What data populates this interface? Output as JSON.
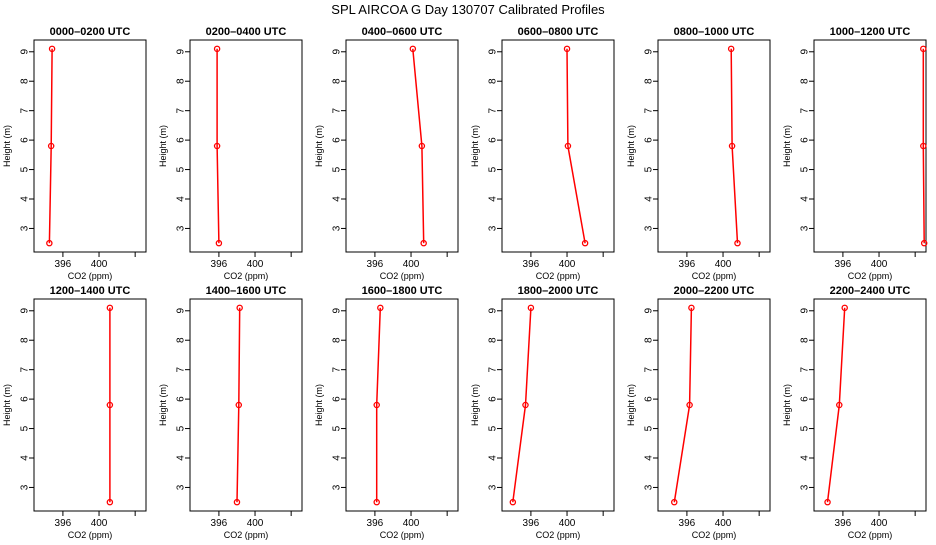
{
  "title": "SPL AIRCOA G  Day 130707  Calibrated Profiles",
  "colors": {
    "series": "#ff0000",
    "axis": "#000000",
    "background": "#ffffff"
  },
  "chart_data": [
    {
      "type": "line",
      "title": "0000–0200 UTC",
      "xlabel": "CO2 (ppm)",
      "ylabel": "Height (m)",
      "xlim": [
        392.8,
        405.2
      ],
      "ylim": [
        2.2,
        9.4
      ],
      "xticks": [
        "396",
        "400"
      ],
      "yticks": [
        "3",
        "4",
        "5",
        "6",
        "7",
        "8",
        "9"
      ],
      "x": [
        394.5,
        394.7,
        394.8
      ],
      "y": [
        2.5,
        5.8,
        9.1
      ],
      "grid": false,
      "legend": "none"
    },
    {
      "type": "line",
      "title": "0200–0400 UTC",
      "xlabel": "CO2 (ppm)",
      "ylabel": "Height (m)",
      "xlim": [
        392.8,
        405.2
      ],
      "ylim": [
        2.2,
        9.4
      ],
      "xticks": [
        "396",
        "400"
      ],
      "yticks": [
        "3",
        "4",
        "5",
        "6",
        "7",
        "8",
        "9"
      ],
      "x": [
        396.0,
        395.8,
        395.8
      ],
      "y": [
        2.5,
        5.8,
        9.1
      ],
      "grid": false,
      "legend": "none"
    },
    {
      "type": "line",
      "title": "0400–0600 UTC",
      "xlabel": "CO2 (ppm)",
      "ylabel": "Height (m)",
      "xlim": [
        392.8,
        405.2
      ],
      "ylim": [
        2.2,
        9.4
      ],
      "xticks": [
        "396",
        "400"
      ],
      "yticks": [
        "3",
        "4",
        "5",
        "6",
        "7",
        "8",
        "9"
      ],
      "x": [
        401.4,
        401.2,
        400.2
      ],
      "y": [
        2.5,
        5.8,
        9.1
      ],
      "grid": false,
      "legend": "none"
    },
    {
      "type": "line",
      "title": "0600–0800 UTC",
      "xlabel": "CO2 (ppm)",
      "ylabel": "Height (m)",
      "xlim": [
        392.8,
        405.2
      ],
      "ylim": [
        2.2,
        9.4
      ],
      "xticks": [
        "396",
        "400"
      ],
      "yticks": [
        "3",
        "4",
        "5",
        "6",
        "7",
        "8",
        "9"
      ],
      "x": [
        402.0,
        400.1,
        400.0
      ],
      "y": [
        2.5,
        5.8,
        9.1
      ],
      "grid": false,
      "legend": "none"
    },
    {
      "type": "line",
      "title": "0800–1000 UTC",
      "xlabel": "CO2 (ppm)",
      "ylabel": "Height (m)",
      "xlim": [
        392.8,
        405.2
      ],
      "ylim": [
        2.2,
        9.4
      ],
      "xticks": [
        "396",
        "400"
      ],
      "yticks": [
        "3",
        "4",
        "5",
        "6",
        "7",
        "8",
        "9"
      ],
      "x": [
        401.6,
        401.0,
        400.9
      ],
      "y": [
        2.5,
        5.8,
        9.1
      ],
      "grid": false,
      "legend": "none"
    },
    {
      "type": "line",
      "title": "1000–1200 UTC",
      "xlabel": "CO2 (ppm)",
      "ylabel": "Height (m)",
      "xlim": [
        392.8,
        405.2
      ],
      "ylim": [
        2.2,
        9.4
      ],
      "xticks": [
        "396",
        "400"
      ],
      "yticks": [
        "3",
        "4",
        "5",
        "6",
        "7",
        "8",
        "9"
      ],
      "x": [
        405.0,
        404.9,
        404.9
      ],
      "y": [
        2.5,
        5.8,
        9.1
      ],
      "grid": false,
      "legend": "none"
    },
    {
      "type": "line",
      "title": "1200–1400 UTC",
      "xlabel": "CO2 (ppm)",
      "ylabel": "Height (m)",
      "xlim": [
        392.8,
        405.2
      ],
      "ylim": [
        2.2,
        9.4
      ],
      "xticks": [
        "396",
        "400"
      ],
      "yticks": [
        "3",
        "4",
        "5",
        "6",
        "7",
        "8",
        "9"
      ],
      "x": [
        401.2,
        401.2,
        401.2
      ],
      "y": [
        2.5,
        5.8,
        9.1
      ],
      "grid": false,
      "legend": "none"
    },
    {
      "type": "line",
      "title": "1400–1600 UTC",
      "xlabel": "CO2 (ppm)",
      "ylabel": "Height (m)",
      "xlim": [
        392.8,
        405.2
      ],
      "ylim": [
        2.2,
        9.4
      ],
      "xticks": [
        "396",
        "400"
      ],
      "yticks": [
        "3",
        "4",
        "5",
        "6",
        "7",
        "8",
        "9"
      ],
      "x": [
        398.0,
        398.2,
        398.3
      ],
      "y": [
        2.5,
        5.8,
        9.1
      ],
      "grid": false,
      "legend": "none"
    },
    {
      "type": "line",
      "title": "1600–1800 UTC",
      "xlabel": "CO2 (ppm)",
      "ylabel": "Height (m)",
      "xlim": [
        392.8,
        405.2
      ],
      "ylim": [
        2.2,
        9.4
      ],
      "xticks": [
        "396",
        "400"
      ],
      "yticks": [
        "3",
        "4",
        "5",
        "6",
        "7",
        "8",
        "9"
      ],
      "x": [
        396.2,
        396.2,
        396.6
      ],
      "y": [
        2.5,
        5.8,
        9.1
      ],
      "grid": false,
      "legend": "none"
    },
    {
      "type": "line",
      "title": "1800–2000 UTC",
      "xlabel": "CO2 (ppm)",
      "ylabel": "Height (m)",
      "xlim": [
        392.8,
        405.2
      ],
      "ylim": [
        2.2,
        9.4
      ],
      "xticks": [
        "396",
        "400"
      ],
      "yticks": [
        "3",
        "4",
        "5",
        "6",
        "7",
        "8",
        "9"
      ],
      "x": [
        394.0,
        395.4,
        396.0
      ],
      "y": [
        2.5,
        5.8,
        9.1
      ],
      "grid": false,
      "legend": "none"
    },
    {
      "type": "line",
      "title": "2000–2200 UTC",
      "xlabel": "CO2 (ppm)",
      "ylabel": "Height (m)",
      "xlim": [
        392.8,
        405.2
      ],
      "ylim": [
        2.2,
        9.4
      ],
      "xticks": [
        "396",
        "400"
      ],
      "yticks": [
        "3",
        "4",
        "5",
        "6",
        "7",
        "8",
        "9"
      ],
      "x": [
        394.6,
        396.3,
        396.5
      ],
      "y": [
        2.5,
        5.8,
        9.1
      ],
      "grid": false,
      "legend": "none"
    },
    {
      "type": "line",
      "title": "2200–2400 UTC",
      "xlabel": "CO2 (ppm)",
      "ylabel": "Height (m)",
      "xlim": [
        392.8,
        405.2
      ],
      "ylim": [
        2.2,
        9.4
      ],
      "xticks": [
        "396",
        "400"
      ],
      "yticks": [
        "3",
        "4",
        "5",
        "6",
        "7",
        "8",
        "9"
      ],
      "x": [
        394.3,
        395.6,
        396.2
      ],
      "y": [
        2.5,
        5.8,
        9.1
      ],
      "grid": false,
      "legend": "none"
    }
  ]
}
